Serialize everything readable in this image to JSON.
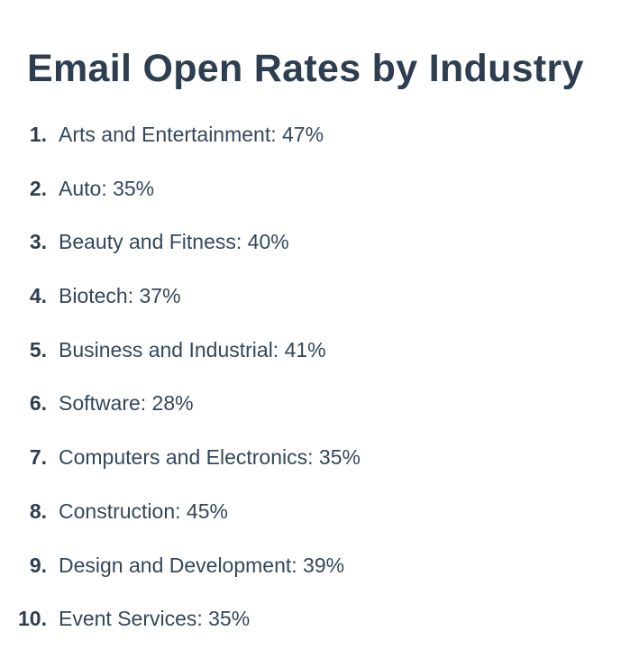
{
  "title": "Email Open Rates by Industry",
  "items": [
    {
      "num": "1.",
      "text": "Arts and Entertainment: 47%"
    },
    {
      "num": "2.",
      "text": "Auto: 35%"
    },
    {
      "num": "3.",
      "text": "Beauty and Fitness: 40%"
    },
    {
      "num": "4.",
      "text": "Biotech: 37%"
    },
    {
      "num": "5.",
      "text": "Business and Industrial: 41%"
    },
    {
      "num": "6.",
      "text": "Software: 28%"
    },
    {
      "num": "7.",
      "text": "Computers and Electronics: 35%"
    },
    {
      "num": "8.",
      "text": "Construction: 45%"
    },
    {
      "num": "9.",
      "text": "Design and Development: 39%"
    },
    {
      "num": "10.",
      "text": "Event Services: 35%"
    }
  ]
}
